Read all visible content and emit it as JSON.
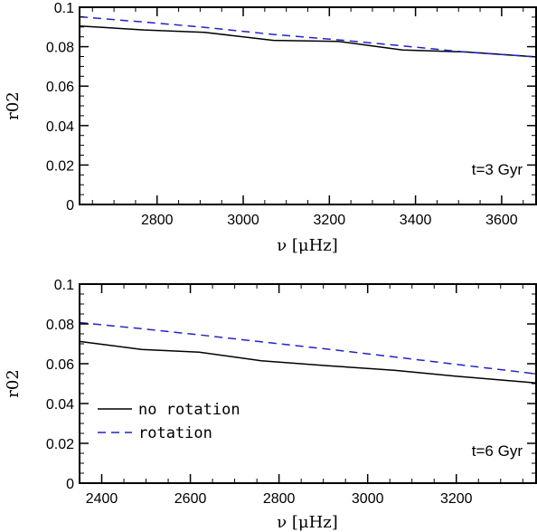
{
  "chart_data": [
    {
      "type": "line",
      "title": "",
      "xlabel": "ν [μHz]",
      "ylabel": "r02",
      "xlim": [
        2620,
        3680
      ],
      "ylim": [
        0,
        0.1
      ],
      "x_ticks": [
        2800,
        3000,
        3200,
        3400,
        3600
      ],
      "y_ticks": [
        0,
        0.02,
        0.04,
        0.06,
        0.08,
        0.1
      ],
      "x_tick_labels": [
        "2800",
        "3000",
        "3200",
        "3400",
        "3600"
      ],
      "y_tick_labels": [
        "0",
        "0.02",
        "0.04",
        "0.06",
        "0.08",
        "0.1"
      ],
      "annotation": "t=3 Gyr",
      "grid": false,
      "series": [
        {
          "name": "no rotation",
          "color": "#000000",
          "dash": "solid",
          "x": [
            2620,
            2770,
            2910,
            3070,
            3220,
            3370,
            3520,
            3680
          ],
          "y": [
            0.0905,
            0.0885,
            0.0873,
            0.0832,
            0.0827,
            0.0783,
            0.0773,
            0.0748
          ]
        },
        {
          "name": "rotation",
          "color": "#2222cc",
          "dash": "dashed",
          "x": [
            2620,
            2770,
            2910,
            3070,
            3220,
            3370,
            3520,
            3680
          ],
          "y": [
            0.0952,
            0.0925,
            0.0898,
            0.0862,
            0.0835,
            0.0804,
            0.0772,
            0.0748
          ]
        }
      ]
    },
    {
      "type": "line",
      "title": "",
      "xlabel": "ν [μHz]",
      "ylabel": "r02",
      "xlim": [
        2350,
        3380
      ],
      "ylim": [
        0,
        0.1
      ],
      "x_ticks": [
        2400,
        2600,
        2800,
        3000,
        3200
      ],
      "y_ticks": [
        0,
        0.02,
        0.04,
        0.06,
        0.08,
        0.1
      ],
      "x_tick_labels": [
        "2400",
        "2600",
        "2800",
        "3000",
        "3200"
      ],
      "y_tick_labels": [
        "0",
        "0.02",
        "0.04",
        "0.06",
        "0.08",
        "0.1"
      ],
      "annotation": "t=6 Gyr",
      "grid": false,
      "legend": {
        "placement": "lower-left",
        "entries": [
          "no rotation",
          "rotation"
        ]
      },
      "series": [
        {
          "name": "no rotation",
          "color": "#000000",
          "dash": "solid",
          "x": [
            2350,
            2490,
            2620,
            2760,
            2910,
            3060,
            3210,
            3380
          ],
          "y": [
            0.0712,
            0.0672,
            0.0658,
            0.0615,
            0.059,
            0.0567,
            0.0535,
            0.0503
          ]
        },
        {
          "name": "rotation",
          "color": "#2222cc",
          "dash": "dashed",
          "x": [
            2350,
            2490,
            2620,
            2760,
            2910,
            3060,
            3210,
            3380
          ],
          "y": [
            0.0807,
            0.0776,
            0.0745,
            0.071,
            0.0673,
            0.0634,
            0.0594,
            0.0549
          ]
        }
      ]
    }
  ]
}
